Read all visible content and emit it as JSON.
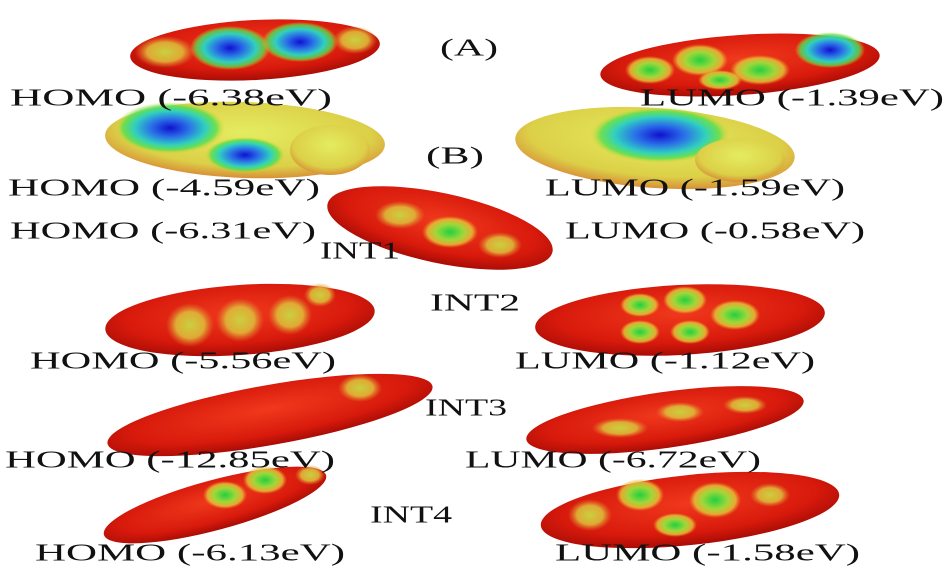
{
  "panels": [
    {
      "label": "(A)",
      "homo": "HOMO (-6.38eV)",
      "lumo": "LUMO (-1.39eV)"
    },
    {
      "label": "(B)",
      "homo": "HOMO (-4.59eV)",
      "lumo": "LUMO (-1.59eV)"
    },
    {
      "label": "INT1",
      "homo": "HOMO (-6.31eV)",
      "lumo": "LUMO (-0.58eV)"
    },
    {
      "label": "INT2",
      "homo": "HOMO (-5.56eV)",
      "lumo": "LUMO (-1.12eV)"
    },
    {
      "label": "INT3",
      "homo": "HOMO (-12.85eV)",
      "lumo": "LUMO (-6.72eV)"
    },
    {
      "label": "INT4",
      "homo": "HOMO (-6.13eV)",
      "lumo": "LUMO (-1.58eV)"
    }
  ]
}
